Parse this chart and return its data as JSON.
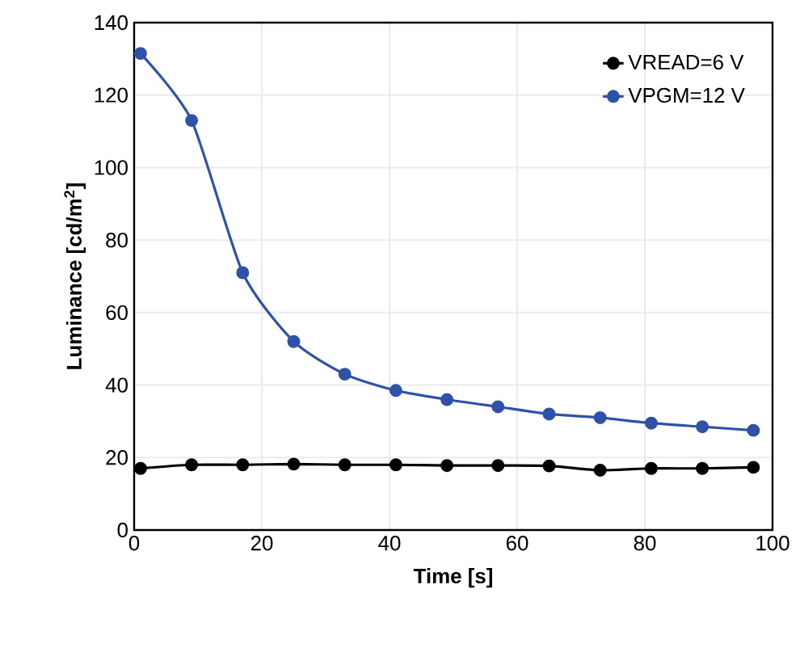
{
  "chart_data": {
    "type": "line",
    "xlabel": "Time [s]",
    "ylabel": "Luminance  [cd/m$^{2}$]",
    "xlim": [
      0,
      100
    ],
    "ylim": [
      0,
      140
    ],
    "xticks": [
      0,
      20,
      40,
      60,
      80,
      100
    ],
    "yticks": [
      0,
      20,
      40,
      60,
      80,
      100,
      120,
      140
    ],
    "grid": true,
    "legend": "top right",
    "marker": "circle",
    "line_style": "solid",
    "series": [
      {
        "name": "VREAD=6 V",
        "color": "#000000",
        "x": [
          1,
          9,
          17,
          25,
          33,
          41,
          49,
          57,
          65,
          73,
          81,
          89,
          97
        ],
        "values": [
          17,
          18,
          18,
          18.2,
          18,
          18,
          17.8,
          17.8,
          17.7,
          16.5,
          17,
          17,
          17.3
        ]
      },
      {
        "name": "VPGM=12 V",
        "color": "#2f52a8",
        "x": [
          1,
          9,
          17,
          25,
          33,
          41,
          49,
          57,
          65,
          73,
          81,
          89,
          97
        ],
        "values": [
          131.5,
          113,
          71,
          52,
          43,
          38.5,
          36,
          34,
          32,
          31,
          29.5,
          28.5,
          27.5
        ]
      }
    ]
  }
}
